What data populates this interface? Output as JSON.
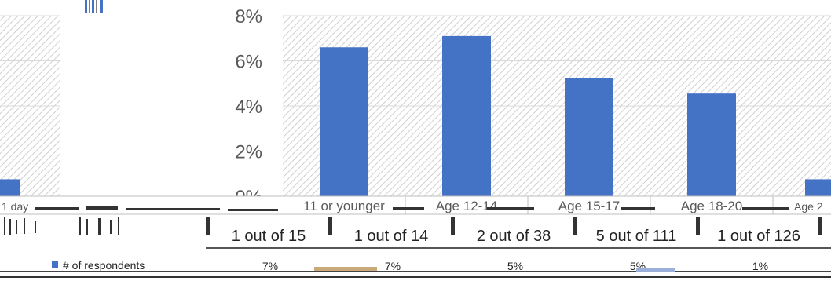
{
  "chart_data": {
    "type": "bar",
    "ylim": [
      0,
      8
    ],
    "y_ticks": [
      "0%",
      "2%",
      "4%",
      "6%",
      "8%"
    ],
    "y_tick_values": [
      0,
      2,
      4,
      6,
      8
    ],
    "categories": [
      "11 or younger",
      "Age 12-14",
      "Age 15-17",
      "Age 18-20"
    ],
    "values": [
      6.6,
      7.1,
      5.25,
      4.55
    ],
    "left_partial_category": "1 day",
    "left_partial_value": 0.75,
    "right_partial_category": "Age 2",
    "right_partial_value": 0.75,
    "ratio_row": [
      "1 out of 15",
      "1 out of 14",
      "2 out of 38",
      "5 out of 111",
      "1 out of 126"
    ],
    "legend_label": "# of respondents",
    "percent_row": [
      "7%",
      "7%",
      "5%",
      "5%",
      "1%"
    ],
    "grid": true,
    "colors": {
      "bar": "#4472c4",
      "hatch": "#d0d0d0",
      "grid": "#d9d9d9",
      "text": "#595959",
      "dark": "#222222"
    }
  }
}
